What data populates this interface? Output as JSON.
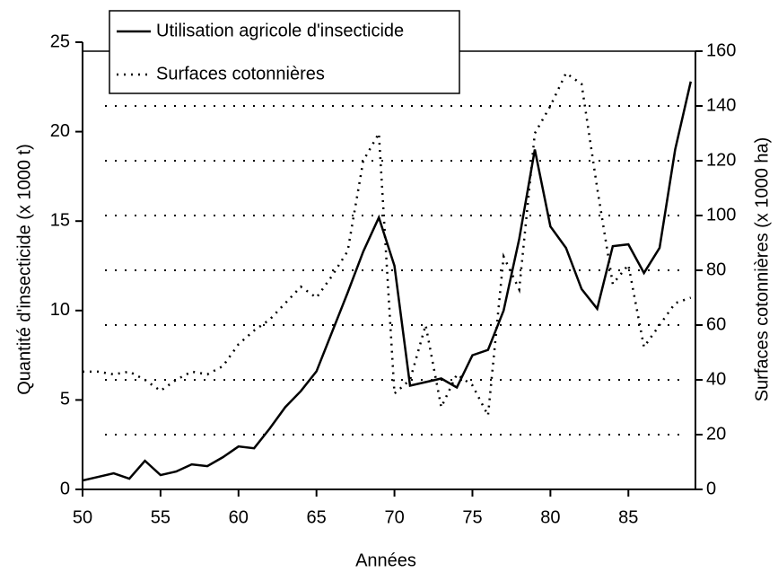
{
  "chart_data": {
    "type": "line",
    "xlabel": "Années",
    "ylabel": "Quantité d'insecticide (x 1000 t)",
    "y2label": "Surfaces cotonnières (x 1000 ha)",
    "x": [
      50,
      51,
      52,
      53,
      54,
      55,
      56,
      57,
      58,
      59,
      60,
      61,
      62,
      63,
      64,
      65,
      66,
      67,
      68,
      69,
      70,
      71,
      72,
      73,
      74,
      75,
      76,
      77,
      78,
      79,
      80,
      81,
      82,
      83,
      84,
      85,
      86,
      87,
      88,
      89
    ],
    "series": [
      {
        "name": "Utilisation agricole d'insecticide",
        "color": "#000000",
        "style": "solid",
        "values": [
          0.5,
          0.7,
          0.9,
          0.6,
          1.6,
          0.8,
          1.0,
          1.4,
          1.3,
          1.8,
          2.4,
          2.3,
          3.4,
          4.6,
          5.5,
          6.6,
          8.8,
          11.0,
          13.3,
          15.2,
          12.5,
          5.8,
          6.0,
          6.2,
          5.7,
          7.5,
          7.8,
          10.0,
          14.0,
          19.0,
          14.7,
          13.5,
          11.2,
          10.1,
          13.6,
          13.7,
          12.1,
          13.5,
          19.0,
          22.8
        ]
      },
      {
        "name": "Surfaces cotonnières",
        "color": "#000000",
        "style": "dotted",
        "axis": "y2",
        "values": [
          43,
          43,
          42,
          43,
          40,
          36,
          40,
          43,
          42,
          45,
          53,
          58,
          62,
          68,
          74,
          70,
          78,
          87,
          120,
          130,
          35,
          40,
          60,
          30,
          42,
          38,
          27,
          85,
          73,
          130,
          140,
          152,
          148,
          110,
          75,
          82,
          52,
          60,
          68,
          70
        ]
      }
    ],
    "xlim": [
      50,
      89.3
    ],
    "xticks": [
      50,
      55,
      60,
      65,
      70,
      75,
      80,
      85
    ],
    "ylim": [
      0,
      25
    ],
    "yticks": [
      0,
      5,
      10,
      15,
      20,
      25
    ],
    "y2lim": [
      0,
      160
    ],
    "y2ticks": [
      0,
      20,
      40,
      60,
      80,
      100,
      120,
      140,
      160
    ],
    "grid": true,
    "legend": "top-left"
  }
}
